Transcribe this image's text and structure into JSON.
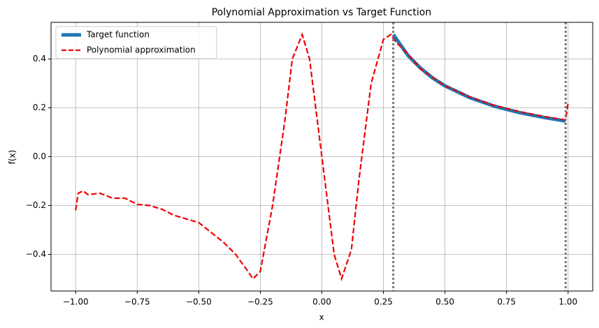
{
  "chart_data": {
    "type": "line",
    "title": "Polynomial Approximation vs Target Function",
    "xlabel": "x",
    "ylabel": "f(x)",
    "xlim": [
      -1.1,
      1.1
    ],
    "ylim": [
      -0.55,
      0.55
    ],
    "xticks": [
      {
        "value": -1,
        "label": "−1.00"
      },
      {
        "value": -0.75,
        "label": "−0.75"
      },
      {
        "value": -0.5,
        "label": "−0.50"
      },
      {
        "value": -0.25,
        "label": "−0.25"
      },
      {
        "value": 0,
        "label": "0.00"
      },
      0.25,
      {
        "value": 0.5,
        "label": "0.50"
      },
      0.75,
      {
        "value": 1,
        "label": "1.00"
      }
    ],
    "yticks": [
      {
        "value": -0.4,
        "label": "−0.4"
      },
      {
        "value": -0.2,
        "label": "−0.2"
      },
      {
        "value": 0,
        "label": "0.0"
      },
      0.2,
      0.4
    ],
    "grid": true,
    "legend": "upper left",
    "vlines": [
      0.29,
      0.99
    ],
    "vline_color": "#777777",
    "series": [
      {
        "name": "Target function",
        "color": "#1f77b4",
        "style": "solid",
        "x": [
          0.29,
          0.35,
          0.4,
          0.45,
          0.5,
          0.6,
          0.7,
          0.8,
          0.9,
          0.99
        ],
        "values": [
          0.5,
          0.414,
          0.363,
          0.322,
          0.29,
          0.242,
          0.207,
          0.181,
          0.161,
          0.146
        ]
      },
      {
        "name": "Polynomial approximation",
        "color": "#ee0000",
        "style": "dashed",
        "x": [
          -1.0,
          -0.99,
          -0.97,
          -0.95,
          -0.9,
          -0.85,
          -0.8,
          -0.75,
          -0.7,
          -0.65,
          -0.6,
          -0.55,
          -0.5,
          -0.45,
          -0.4,
          -0.35,
          -0.3,
          -0.28,
          -0.25,
          -0.2,
          -0.15,
          -0.12,
          -0.08,
          -0.05,
          0,
          0.05,
          0.08,
          0.12,
          0.15,
          0.2,
          0.25,
          0.28,
          0.3,
          0.35,
          0.4,
          0.5,
          0.6,
          0.7,
          0.8,
          0.9,
          0.99,
          1.0
        ],
        "values": [
          -0.22,
          -0.15,
          -0.14,
          -0.155,
          -0.15,
          -0.17,
          -0.17,
          -0.195,
          -0.2,
          -0.215,
          -0.24,
          -0.255,
          -0.27,
          -0.31,
          -0.35,
          -0.4,
          -0.47,
          -0.5,
          -0.47,
          -0.2,
          0.15,
          0.4,
          0.5,
          0.4,
          0.0,
          -0.4,
          -0.5,
          -0.38,
          -0.1,
          0.3,
          0.48,
          0.5,
          0.47,
          0.42,
          0.36,
          0.29,
          0.245,
          0.21,
          0.185,
          0.165,
          0.15,
          0.22
        ]
      }
    ]
  }
}
